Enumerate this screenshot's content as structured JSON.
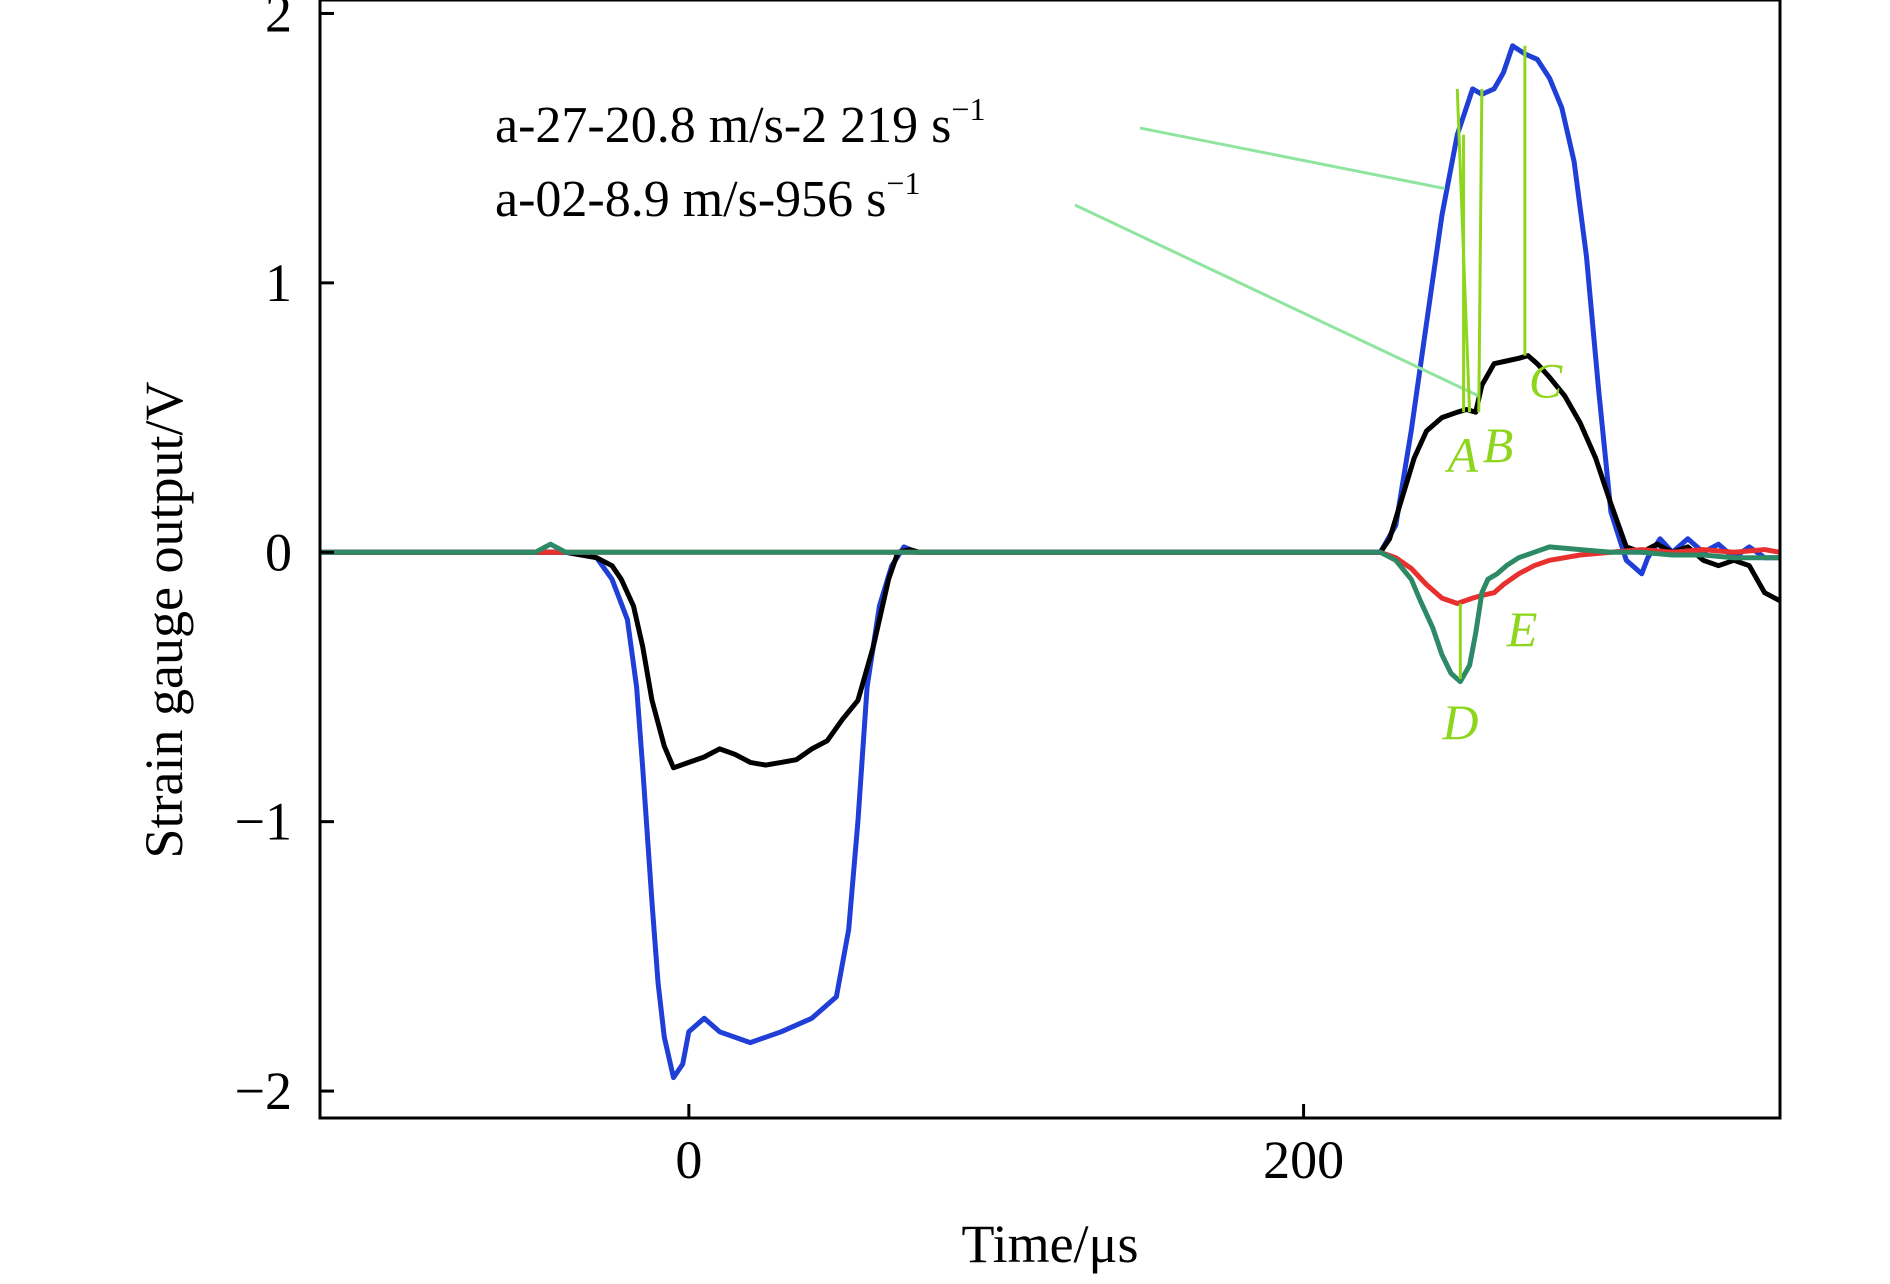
{
  "chart_data": {
    "type": "line",
    "title": "",
    "xlabel": "Time/μs",
    "ylabel": "Strain gauge output/V",
    "xlim": [
      -120,
      355
    ],
    "ylim": [
      -2.1,
      2.05
    ],
    "xticks": [
      {
        "value": 0,
        "label": "0"
      },
      {
        "value": 200,
        "label": "200"
      }
    ],
    "yticks": [
      {
        "value": -2,
        "label": "−2"
      },
      {
        "value": -1,
        "label": "−1"
      },
      {
        "value": 0,
        "label": "0"
      },
      {
        "value": 1,
        "label": "1"
      },
      {
        "value": 2,
        "label": "2"
      }
    ],
    "grid": false,
    "annotations": [
      {
        "text": "a-27-20.8 m/s-2 219 s",
        "sup": "−1"
      },
      {
        "text": "a-02-8.9 m/s-956 s",
        "sup": "−1"
      }
    ],
    "markers": [
      {
        "label": "A",
        "x": 254,
        "y": 0.52
      },
      {
        "label": "B",
        "x": 257,
        "y": 0.52
      },
      {
        "label": "C",
        "x": 272,
        "y": 0.73
      },
      {
        "label": "D",
        "x": 251,
        "y": -0.47
      },
      {
        "label": "E",
        "x": 259,
        "y": -0.17
      }
    ],
    "series": [
      {
        "color": "#1f3fd6",
        "x": [
          -120,
          -50,
          -40,
          -30,
          -25,
          -20,
          -17,
          -15,
          -12,
          -10,
          -8,
          -5,
          -2,
          0,
          5,
          10,
          20,
          30,
          40,
          48,
          52,
          55,
          58,
          62,
          66,
          70,
          74,
          78,
          100,
          150,
          200,
          225,
          230,
          235,
          240,
          245,
          250,
          255,
          258,
          262,
          265,
          268,
          272,
          276,
          280,
          284,
          288,
          292,
          296,
          300,
          305,
          310,
          312,
          316,
          320,
          325,
          330,
          335,
          340,
          345,
          350,
          355
        ],
        "y": [
          0,
          0,
          0,
          -0.02,
          -0.1,
          -0.25,
          -0.5,
          -0.8,
          -1.3,
          -1.6,
          -1.8,
          -1.95,
          -1.9,
          -1.78,
          -1.73,
          -1.78,
          -1.82,
          -1.78,
          -1.73,
          -1.65,
          -1.4,
          -1.0,
          -0.5,
          -0.2,
          -0.05,
          0.02,
          0,
          0,
          0,
          0,
          0,
          0,
          0.1,
          0.45,
          0.85,
          1.25,
          1.55,
          1.72,
          1.7,
          1.72,
          1.78,
          1.88,
          1.85,
          1.83,
          1.76,
          1.65,
          1.45,
          1.1,
          0.6,
          0.15,
          -0.03,
          -0.08,
          -0.02,
          0.05,
          0.0,
          0.05,
          0.0,
          0.03,
          -0.02,
          0.02,
          -0.02,
          -0.02
        ]
      },
      {
        "color": "#000000",
        "x": [
          -120,
          -50,
          -40,
          -30,
          -25,
          -22,
          -18,
          -15,
          -12,
          -8,
          -5,
          0,
          5,
          10,
          15,
          20,
          25,
          30,
          35,
          40,
          45,
          50,
          55,
          60,
          65,
          68,
          72,
          75,
          100,
          150,
          200,
          225,
          228,
          232,
          236,
          240,
          245,
          250,
          253,
          256,
          258,
          262,
          266,
          270,
          273,
          276,
          280,
          285,
          290,
          295,
          300,
          305,
          310,
          315,
          320,
          325,
          330,
          335,
          340,
          345,
          350,
          355
        ],
        "y": [
          0,
          0,
          0,
          -0.02,
          -0.05,
          -0.1,
          -0.2,
          -0.35,
          -0.55,
          -0.72,
          -0.8,
          -0.78,
          -0.76,
          -0.73,
          -0.75,
          -0.78,
          -0.79,
          -0.78,
          -0.77,
          -0.73,
          -0.7,
          -0.62,
          -0.55,
          -0.35,
          -0.1,
          0.0,
          0.01,
          0,
          0,
          0,
          0,
          0,
          0.05,
          0.2,
          0.35,
          0.45,
          0.5,
          0.52,
          0.53,
          0.52,
          0.62,
          0.7,
          0.71,
          0.72,
          0.73,
          0.7,
          0.65,
          0.58,
          0.48,
          0.35,
          0.18,
          0.02,
          0.0,
          0.03,
          0.0,
          0.02,
          -0.03,
          -0.05,
          -0.03,
          -0.05,
          -0.15,
          -0.18
        ]
      },
      {
        "color": "#e8302f",
        "x": [
          -120,
          -50,
          0,
          100,
          200,
          225,
          230,
          235,
          240,
          245,
          250,
          255,
          258,
          262,
          265,
          270,
          275,
          280,
          290,
          300,
          310,
          320,
          330,
          340,
          350,
          355
        ],
        "y": [
          0,
          0,
          0,
          0,
          0,
          0,
          -0.02,
          -0.06,
          -0.12,
          -0.17,
          -0.19,
          -0.17,
          -0.16,
          -0.15,
          -0.12,
          -0.08,
          -0.05,
          -0.03,
          -0.01,
          0,
          0.01,
          0,
          0.01,
          0,
          0.01,
          0
        ]
      },
      {
        "color": "#2e8a66",
        "x": [
          -120,
          -50,
          -45,
          -40,
          0,
          100,
          200,
          225,
          230,
          235,
          238,
          242,
          245,
          248,
          251,
          254,
          256,
          258,
          260,
          263,
          266,
          270,
          275,
          280,
          290,
          300,
          310,
          320,
          330,
          340,
          350,
          355
        ],
        "y": [
          0,
          0,
          0.03,
          0,
          0,
          0,
          0,
          0,
          -0.03,
          -0.1,
          -0.18,
          -0.28,
          -0.38,
          -0.45,
          -0.48,
          -0.42,
          -0.3,
          -0.15,
          -0.1,
          -0.08,
          -0.05,
          -0.02,
          0,
          0.02,
          0.01,
          0,
          0,
          -0.01,
          -0.01,
          -0.02,
          -0.02,
          -0.02
        ]
      }
    ]
  }
}
